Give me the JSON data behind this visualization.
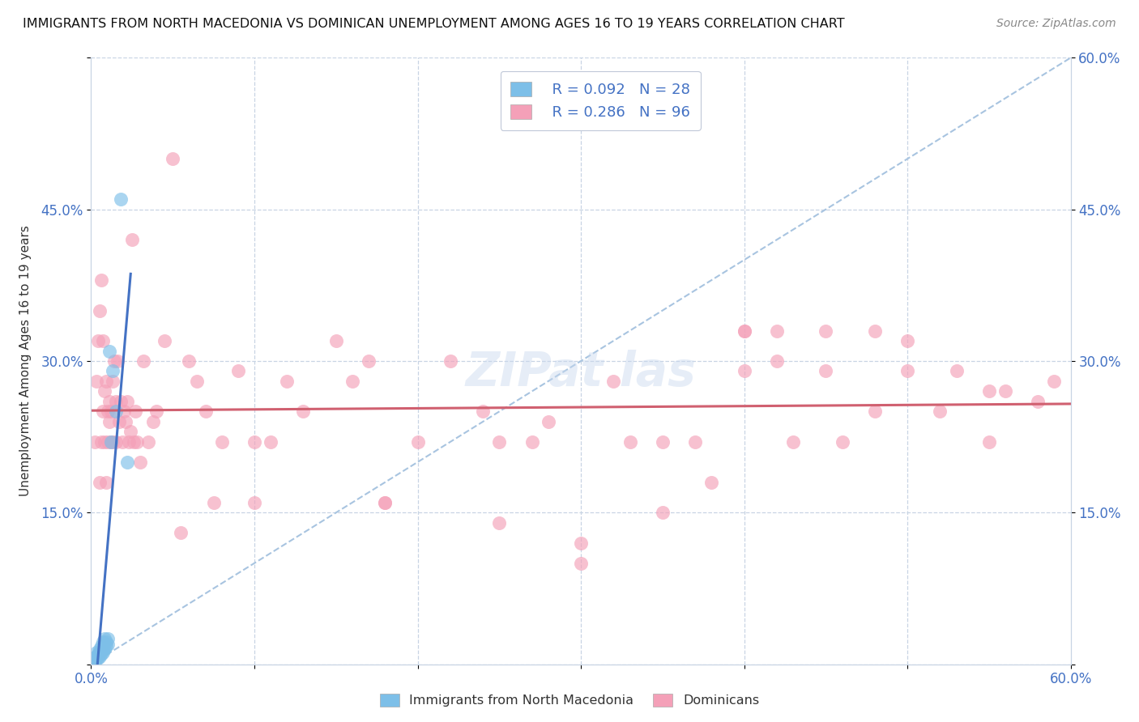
{
  "title": "IMMIGRANTS FROM NORTH MACEDONIA VS DOMINICAN UNEMPLOYMENT AMONG AGES 16 TO 19 YEARS CORRELATION CHART",
  "source": "Source: ZipAtlas.com",
  "ylabel": "Unemployment Among Ages 16 to 19 years",
  "xlim": [
    0.0,
    0.6
  ],
  "ylim": [
    0.0,
    0.6
  ],
  "xtick_positions": [
    0.0,
    0.1,
    0.2,
    0.3,
    0.4,
    0.5,
    0.6
  ],
  "xtick_labels": [
    "0.0%",
    "",
    "",
    "",
    "",
    "",
    "60.0%"
  ],
  "ytick_positions": [
    0.0,
    0.15,
    0.3,
    0.45,
    0.6
  ],
  "ytick_labels_left": [
    "",
    "15.0%",
    "30.0%",
    "45.0%",
    ""
  ],
  "ytick_labels_right": [
    "",
    "15.0%",
    "30.0%",
    "45.0%",
    "60.0%"
  ],
  "legend_r1": "R = 0.092",
  "legend_n1": "N = 28",
  "legend_r2": "R = 0.286",
  "legend_n2": "N = 96",
  "color_blue": "#7dbfe8",
  "color_pink": "#f4a0b8",
  "color_blue_line": "#4472c4",
  "color_pink_line": "#d06070",
  "color_dashed": "#a8c4e0",
  "background_color": "#ffffff",
  "grid_color": "#c8d4e4",
  "blue_scatter_x": [
    0.001,
    0.002,
    0.002,
    0.003,
    0.003,
    0.003,
    0.004,
    0.004,
    0.005,
    0.005,
    0.005,
    0.006,
    0.006,
    0.007,
    0.007,
    0.007,
    0.008,
    0.008,
    0.009,
    0.009,
    0.01,
    0.01,
    0.011,
    0.012,
    0.013,
    0.015,
    0.018,
    0.022
  ],
  "blue_scatter_y": [
    0.005,
    0.003,
    0.007,
    0.005,
    0.008,
    0.012,
    0.006,
    0.01,
    0.008,
    0.012,
    0.015,
    0.01,
    0.018,
    0.012,
    0.015,
    0.022,
    0.015,
    0.025,
    0.018,
    0.022,
    0.02,
    0.025,
    0.31,
    0.22,
    0.29,
    0.25,
    0.46,
    0.2
  ],
  "pink_scatter_x": [
    0.002,
    0.003,
    0.004,
    0.005,
    0.005,
    0.006,
    0.006,
    0.007,
    0.007,
    0.008,
    0.008,
    0.009,
    0.009,
    0.01,
    0.01,
    0.011,
    0.011,
    0.012,
    0.012,
    0.013,
    0.013,
    0.014,
    0.015,
    0.015,
    0.016,
    0.017,
    0.018,
    0.019,
    0.02,
    0.021,
    0.022,
    0.023,
    0.024,
    0.025,
    0.026,
    0.027,
    0.028,
    0.03,
    0.032,
    0.035,
    0.038,
    0.04,
    0.045,
    0.05,
    0.06,
    0.065,
    0.07,
    0.08,
    0.09,
    0.1,
    0.11,
    0.12,
    0.13,
    0.15,
    0.16,
    0.17,
    0.18,
    0.2,
    0.22,
    0.24,
    0.25,
    0.27,
    0.28,
    0.3,
    0.3,
    0.32,
    0.33,
    0.35,
    0.37,
    0.38,
    0.4,
    0.4,
    0.42,
    0.43,
    0.45,
    0.46,
    0.48,
    0.5,
    0.52,
    0.53,
    0.55,
    0.56,
    0.58,
    0.59,
    0.055,
    0.075,
    0.1,
    0.18,
    0.25,
    0.35,
    0.4,
    0.42,
    0.45,
    0.48,
    0.5,
    0.55
  ],
  "pink_scatter_y": [
    0.22,
    0.28,
    0.32,
    0.18,
    0.35,
    0.38,
    0.22,
    0.25,
    0.32,
    0.27,
    0.22,
    0.18,
    0.28,
    0.25,
    0.22,
    0.26,
    0.24,
    0.22,
    0.25,
    0.28,
    0.22,
    0.3,
    0.26,
    0.22,
    0.3,
    0.24,
    0.26,
    0.22,
    0.25,
    0.24,
    0.26,
    0.22,
    0.23,
    0.42,
    0.22,
    0.25,
    0.22,
    0.2,
    0.3,
    0.22,
    0.24,
    0.25,
    0.32,
    0.5,
    0.3,
    0.28,
    0.25,
    0.22,
    0.29,
    0.22,
    0.22,
    0.28,
    0.25,
    0.32,
    0.28,
    0.3,
    0.16,
    0.22,
    0.3,
    0.25,
    0.14,
    0.22,
    0.24,
    0.12,
    0.1,
    0.28,
    0.22,
    0.15,
    0.22,
    0.18,
    0.33,
    0.33,
    0.33,
    0.22,
    0.29,
    0.22,
    0.33,
    0.29,
    0.25,
    0.29,
    0.22,
    0.27,
    0.26,
    0.28,
    0.13,
    0.16,
    0.16,
    0.16,
    0.22,
    0.22,
    0.29,
    0.3,
    0.33,
    0.25,
    0.32,
    0.27
  ]
}
